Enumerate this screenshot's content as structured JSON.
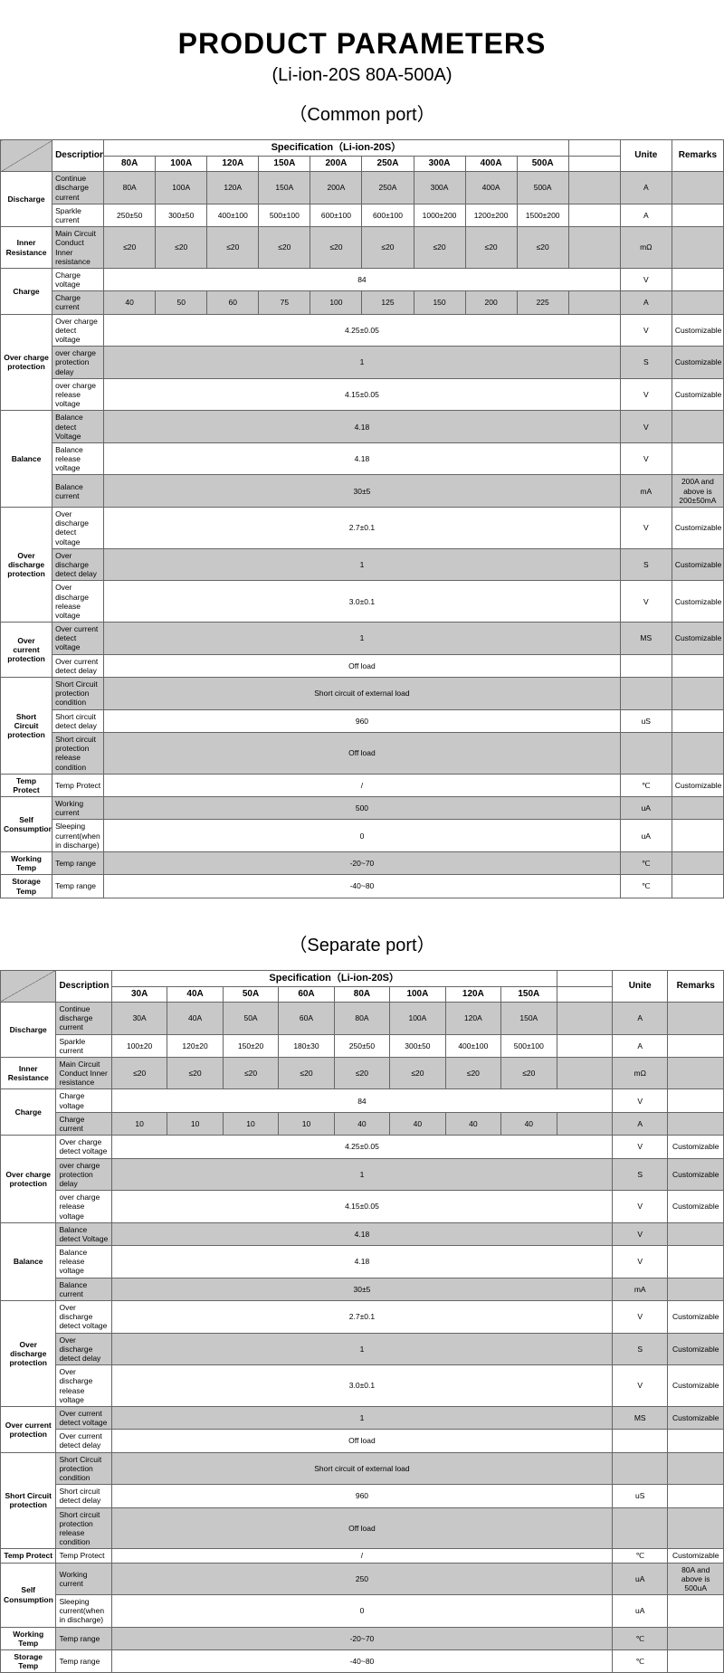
{
  "page_title": "PRODUCT PARAMETERS",
  "subtitle": "(Li-ion-20S 80A-500A)",
  "t1": {
    "section": "（Common port）",
    "spec_header": "Specification（Li-ion-20S）",
    "cols": [
      "80A",
      "100A",
      "120A",
      "150A",
      "200A",
      "250A",
      "300A",
      "400A",
      "500A"
    ],
    "desc_h": "Description",
    "unit_h": "Unite",
    "rem_h": "Remarks",
    "rows": {
      "discharge": {
        "cat": "Discharge",
        "d1": "Continue discharge current",
        "v1": [
          "80A",
          "100A",
          "120A",
          "150A",
          "200A",
          "250A",
          "300A",
          "400A",
          "500A"
        ],
        "u1": "A",
        "r1": "",
        "d2": "Sparkle current",
        "v2": [
          "250±50",
          "300±50",
          "400±100",
          "500±100",
          "600±100",
          "600±100",
          "1000±200",
          "1200±200",
          "1500±200"
        ],
        "u2": "A",
        "r2": ""
      },
      "ir": {
        "cat": "Inner Resistance",
        "d": "Main Circuit Conduct Inner resistance",
        "v": [
          "≤20",
          "≤20",
          "≤20",
          "≤20",
          "≤20",
          "≤20",
          "≤20",
          "≤20",
          "≤20"
        ],
        "u": "mΩ",
        "r": ""
      },
      "charge": {
        "cat": "Charge",
        "d1": "Charge voltage",
        "m1": "84",
        "u1": "V",
        "r1": "",
        "d2": "Charge current",
        "v2": [
          "40",
          "50",
          "60",
          "75",
          "100",
          "125",
          "150",
          "200",
          "225"
        ],
        "u2": "A",
        "r2": ""
      },
      "ocp": {
        "cat": "Over charge protection",
        "d1": "Over charge detect voltage",
        "m1": "4.25±0.05",
        "u1": "V",
        "r1": "Customizable",
        "d2": "over charge protection delay",
        "m2": "1",
        "u2": "S",
        "r2": "Customizable",
        "d3": "over charge release voltage",
        "m3": "4.15±0.05",
        "u3": "V",
        "r3": "Customizable"
      },
      "bal": {
        "cat": "Balance",
        "d1": "Balance detect Voltage",
        "m1": "4.18",
        "u1": "V",
        "r1": "",
        "d2": "Balance release voltage",
        "m2": "4.18",
        "u2": "V",
        "r2": "",
        "d3": "Balance current",
        "m3": "30±5",
        "u3": "mA",
        "r3": "200A and above is 200±50mA"
      },
      "odp": {
        "cat": "Over discharge protection",
        "d1": "Over discharge detect voltage",
        "m1": "2.7±0.1",
        "u1": "V",
        "r1": "Customizable",
        "d2": "Over discharge detect delay",
        "m2": "1",
        "u2": "S",
        "r2": "Customizable",
        "d3": "Over discharge release voltage",
        "m3": "3.0±0.1",
        "u3": "V",
        "r3": "Customizable"
      },
      "occ": {
        "cat": "Over current protection",
        "d1": "Over current detect voltage",
        "m1": "1",
        "u1": "MS",
        "r1": "Customizable",
        "d2": "Over current detect delay",
        "m2": "Off load",
        "u2": "",
        "r2": ""
      },
      "scp": {
        "cat": "Short Circuit protection",
        "d1": "Short Circuit protection condition",
        "m1": "Short circuit of external load",
        "u1": "",
        "r1": "",
        "d2": "Short circuit detect delay",
        "m2": "960",
        "u2": "uS",
        "r2": "",
        "d3": "Short circuit protection release condition",
        "m3": "Off load",
        "u3": "",
        "r3": ""
      },
      "tp": {
        "cat": "Temp Protect",
        "d": "Temp Protect",
        "m": "/",
        "u": "℃",
        "r": "Customizable"
      },
      "sc": {
        "cat": "Self Consumption",
        "d1": "Working current",
        "m1": "500",
        "u1": "uA",
        "r1": "",
        "d2": "Sleeping current(when  in discharge)",
        "m2": "0",
        "u2": "uA",
        "r2": ""
      },
      "wt": {
        "cat": "Working Temp",
        "d": "Temp range",
        "m": "-20~70",
        "u": "℃",
        "r": ""
      },
      "st": {
        "cat": "Storage Temp",
        "d": "Temp range",
        "m": "-40~80",
        "u": "℃",
        "r": ""
      }
    }
  },
  "t2": {
    "section": "（Separate port）",
    "spec_header": "Specification（Li-ion-20S）",
    "cols": [
      "30A",
      "40A",
      "50A",
      "60A",
      "80A",
      "100A",
      "120A",
      "150A"
    ],
    "desc_h": "Description",
    "unit_h": "Unite",
    "rem_h": "Remarks",
    "rows": {
      "discharge": {
        "cat": "Discharge",
        "d1": "Continue discharge current",
        "v1": [
          "30A",
          "40A",
          "50A",
          "60A",
          "80A",
          "100A",
          "120A",
          "150A"
        ],
        "u1": "A",
        "r1": "",
        "d2": "Sparkle current",
        "v2": [
          "100±20",
          "120±20",
          "150±20",
          "180±30",
          "250±50",
          "300±50",
          "400±100",
          "500±100"
        ],
        "u2": "A",
        "r2": ""
      },
      "ir": {
        "cat": "Inner Resistance",
        "d": "Main Circuit Conduct Inner resistance",
        "v": [
          "≤20",
          "≤20",
          "≤20",
          "≤20",
          "≤20",
          "≤20",
          "≤20",
          "≤20"
        ],
        "u": "mΩ",
        "r": ""
      },
      "charge": {
        "cat": "Charge",
        "d1": "Charge voltage",
        "m1": "84",
        "u1": "V",
        "r1": "",
        "d2": "Charge current",
        "v2": [
          "10",
          "10",
          "10",
          "10",
          "40",
          "40",
          "40",
          "40"
        ],
        "u2": "A",
        "r2": ""
      },
      "ocp": {
        "cat": "Over charge protection",
        "d1": "Over charge detect voltage",
        "m1": "4.25±0.05",
        "u1": "V",
        "r1": "Customizable",
        "d2": "over charge protection delay",
        "m2": "1",
        "u2": "S",
        "r2": "Customizable",
        "d3": "over charge release voltage",
        "m3": "4.15±0.05",
        "u3": "V",
        "r3": "Customizable"
      },
      "bal": {
        "cat": "Balance",
        "d1": "Balance detect Voltage",
        "m1": "4.18",
        "u1": "V",
        "r1": "",
        "d2": "Balance release voltage",
        "m2": "4.18",
        "u2": "V",
        "r2": "",
        "d3": "Balance current",
        "m3": "30±5",
        "u3": "mA",
        "r3": ""
      },
      "odp": {
        "cat": "Over discharge protection",
        "d1": "Over discharge detect voltage",
        "m1": "2.7±0.1",
        "u1": "V",
        "r1": "Customizable",
        "d2": "Over discharge detect delay",
        "m2": "1",
        "u2": "S",
        "r2": "Customizable",
        "d3": "Over discharge release voltage",
        "m3": "3.0±0.1",
        "u3": "V",
        "r3": "Customizable"
      },
      "occ": {
        "cat": "Over current protection",
        "d1": "Over current detect voltage",
        "m1": "1",
        "u1": "MS",
        "r1": "Customizable",
        "d2": "Over current detect delay",
        "m2": "Off load",
        "u2": "",
        "r2": ""
      },
      "scp": {
        "cat": "Short Circuit protection",
        "d1": "Short Circuit protection condition",
        "m1": "Short circuit of external load",
        "u1": "",
        "r1": "",
        "d2": "Short circuit detect delay",
        "m2": "960",
        "u2": "uS",
        "r2": "",
        "d3": "Short circuit protection release condition",
        "m3": "Off load",
        "u3": "",
        "r3": ""
      },
      "tp": {
        "cat": "Temp Protect",
        "d": "Temp Protect",
        "m": "/",
        "u": "℃",
        "r": "Customizable"
      },
      "sc": {
        "cat": "Self Consumption",
        "d1": "Working current",
        "m1": "250",
        "u1": "uA",
        "r1": "80A and above is 500uA",
        "d2": "Sleeping current(when  in discharge)",
        "m2": "0",
        "u2": "uA",
        "r2": ""
      },
      "wt": {
        "cat": "Working Temp",
        "d": "Temp range",
        "m": "-20~70",
        "u": "℃",
        "r": ""
      },
      "st": {
        "cat": "Storage Temp",
        "d": "Temp range",
        "m": "-40~80",
        "u": "℃",
        "r": ""
      }
    }
  }
}
